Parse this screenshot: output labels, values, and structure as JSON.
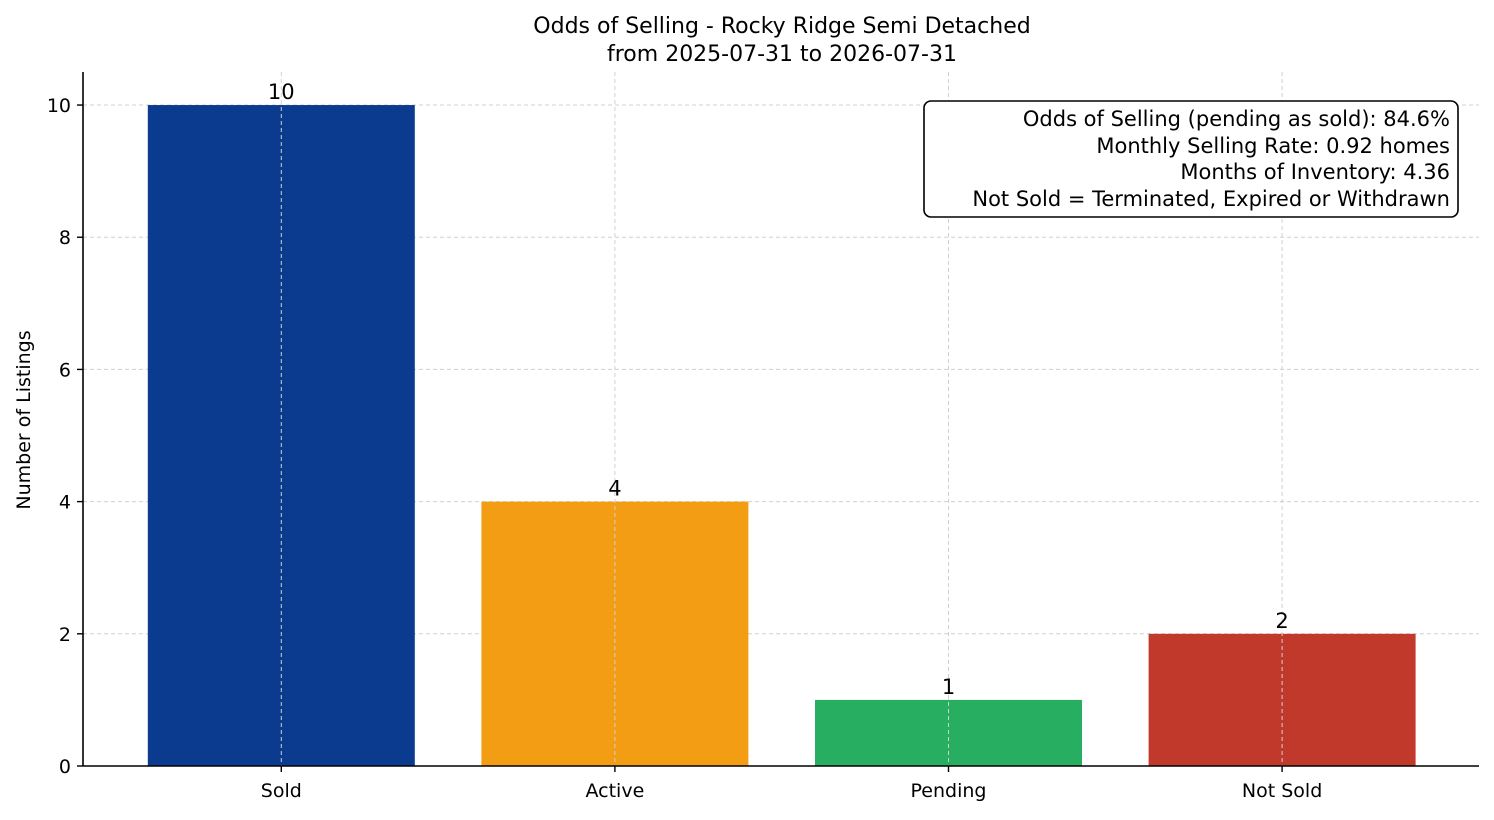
{
  "chart_data": {
    "type": "bar",
    "title_lines": [
      "Odds of Selling - Rocky Ridge Semi Detached",
      "from 2025-07-31 to 2026-07-31"
    ],
    "ylabel": "Number of Listings",
    "xlabel": "",
    "categories": [
      "Sold",
      "Active",
      "Pending",
      "Not Sold"
    ],
    "values": [
      10,
      4,
      1,
      2
    ],
    "colors": [
      "#0b3b8f",
      "#f29d14",
      "#27ae60",
      "#c0392b"
    ],
    "ylim": [
      0,
      10.5
    ],
    "yticks": [
      0,
      2,
      4,
      6,
      8,
      10
    ],
    "grid": true,
    "data_labels": [
      "10",
      "4",
      "1",
      "2"
    ],
    "info_box": {
      "position": "top-right",
      "lines": [
        "Odds of Selling (pending as sold): 84.6%",
        "Monthly Selling Rate: 0.92 homes",
        "Months of Inventory: 4.36",
        "Not Sold = Terminated, Expired or Withdrawn"
      ]
    }
  }
}
